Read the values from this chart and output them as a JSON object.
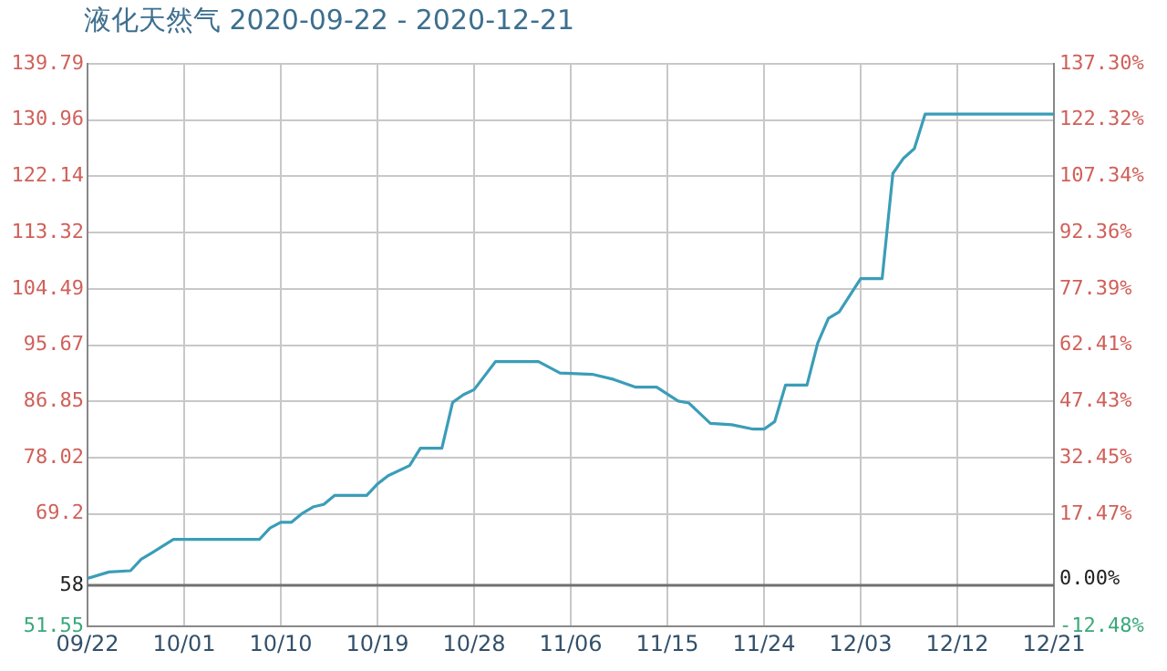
{
  "chart_data": {
    "type": "line",
    "title": "液化天然气 2020-09-22 - 2020-12-21",
    "x": [
      "2020-09-22",
      "2020-09-24",
      "2020-09-26",
      "2020-09-27",
      "2020-09-28",
      "2020-09-30",
      "2020-10-08",
      "2020-10-09",
      "2020-10-10",
      "2020-10-11",
      "2020-10-12",
      "2020-10-13",
      "2020-10-14",
      "2020-10-15",
      "2020-10-18",
      "2020-10-19",
      "2020-10-20",
      "2020-10-22",
      "2020-10-23",
      "2020-10-25",
      "2020-10-26",
      "2020-10-27",
      "2020-10-28",
      "2020-10-30",
      "2020-11-03",
      "2020-11-05",
      "2020-11-08",
      "2020-11-10",
      "2020-11-12",
      "2020-11-14",
      "2020-11-16",
      "2020-11-17",
      "2020-11-19",
      "2020-11-21",
      "2020-11-23",
      "2020-11-24",
      "2020-11-25",
      "2020-11-26",
      "2020-11-28",
      "2020-11-29",
      "2020-11-30",
      "2020-12-01",
      "2020-12-03",
      "2020-12-05",
      "2020-12-06",
      "2020-12-07",
      "2020-12-08",
      "2020-12-09",
      "2020-12-21"
    ],
    "series": [
      {
        "color": "#3b9db8",
        "values": [
          59.1,
          60.1,
          60.3,
          62.1,
          63.1,
          65.2,
          65.2,
          67.0,
          67.9,
          67.9,
          69.3,
          70.3,
          70.7,
          72.1,
          72.1,
          73.9,
          75.2,
          76.8,
          79.5,
          79.5,
          86.7,
          87.9,
          88.7,
          93.1,
          93.1,
          91.3,
          91.1,
          90.3,
          89.1,
          89.1,
          86.9,
          86.6,
          83.4,
          83.2,
          82.5,
          82.5,
          83.7,
          89.4,
          89.4,
          96.0,
          99.9,
          100.9,
          106.1,
          106.1,
          122.6,
          125.0,
          126.5,
          131.9,
          131.9
        ]
      }
    ],
    "xlim": [
      "2020-09-22",
      "2020-12-21"
    ],
    "xticks": [
      {
        "value": "2020-09-22",
        "label": "09/22"
      },
      {
        "value": "2020-10-01",
        "label": "10/01"
      },
      {
        "value": "2020-10-10",
        "label": "10/10"
      },
      {
        "value": "2020-10-19",
        "label": "10/19"
      },
      {
        "value": "2020-10-28",
        "label": "10/28"
      },
      {
        "value": "2020-11-06",
        "label": "11/06"
      },
      {
        "value": "2020-11-15",
        "label": "11/15"
      },
      {
        "value": "2020-11-24",
        "label": "11/24"
      },
      {
        "value": "2020-12-03",
        "label": "12/03"
      },
      {
        "value": "2020-12-12",
        "label": "12/12"
      },
      {
        "value": "2020-12-21",
        "label": "12/21"
      }
    ],
    "ylim": [
      51.55,
      139.79
    ],
    "yticks": [
      51.55,
      58,
      69.2,
      78.02,
      86.85,
      95.67,
      104.49,
      113.32,
      122.14,
      130.96,
      139.79
    ],
    "y2lim": [
      -12.48,
      137.3
    ],
    "y2ticks": [
      {
        "value": -12.48,
        "label": "-12.48%"
      },
      {
        "value": 0,
        "label": "0.00%"
      },
      {
        "value": 17.47,
        "label": "17.47%"
      },
      {
        "value": 32.45,
        "label": "32.45%"
      },
      {
        "value": 47.43,
        "label": "47.43%"
      },
      {
        "value": 62.41,
        "label": "62.41%"
      },
      {
        "value": 77.39,
        "label": "77.39%"
      },
      {
        "value": 92.36,
        "label": "92.36%"
      },
      {
        "value": 107.34,
        "label": "107.34%"
      },
      {
        "value": 122.32,
        "label": "122.32%"
      },
      {
        "value": 137.3,
        "label": "137.30%"
      }
    ],
    "ref_lines": [
      {
        "axis": "y",
        "value": 58,
        "color": "#707070"
      }
    ],
    "grid": true,
    "legend": false,
    "marker": "none",
    "line_style": "solid"
  }
}
